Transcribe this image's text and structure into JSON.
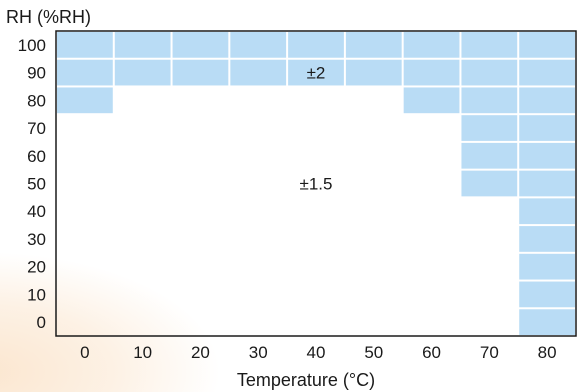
{
  "chart_data": {
    "type": "heatmap",
    "title": "",
    "ylabel": "RH (%RH)",
    "xlabel": "Temperature (°C)",
    "x_ticks": [
      "0",
      "10",
      "20",
      "30",
      "40",
      "50",
      "60",
      "70",
      "80"
    ],
    "y_ticks": [
      "100",
      "90",
      "80",
      "70",
      "60",
      "50",
      "40",
      "30",
      "20",
      "10",
      "0"
    ],
    "regions": [
      {
        "label": "±2",
        "color": "#b9dcf5"
      },
      {
        "label": "±1.5",
        "color": "#ffffff"
      }
    ],
    "cells": [
      {
        "temperature": 0,
        "rh": [
          80,
          90,
          100
        ]
      },
      {
        "temperature": 10,
        "rh": [
          90,
          100
        ]
      },
      {
        "temperature": 20,
        "rh": [
          90,
          100
        ]
      },
      {
        "temperature": 30,
        "rh": [
          90,
          100
        ]
      },
      {
        "temperature": 40,
        "rh": [
          90,
          100
        ]
      },
      {
        "temperature": 50,
        "rh": [
          90,
          100
        ]
      },
      {
        "temperature": 60,
        "rh": [
          80,
          90,
          100
        ]
      },
      {
        "temperature": 70,
        "rh": [
          50,
          60,
          70,
          80,
          90,
          100
        ]
      },
      {
        "temperature": 80,
        "rh": [
          0,
          10,
          20,
          30,
          40,
          50,
          60,
          70,
          80,
          90,
          100
        ]
      }
    ],
    "region_label_positions": [
      {
        "label": "±2",
        "temperature": 40,
        "rh": 90
      },
      {
        "label": "±1.5",
        "temperature": 40,
        "rh": 50
      }
    ],
    "grid": false,
    "legend": "none"
  }
}
